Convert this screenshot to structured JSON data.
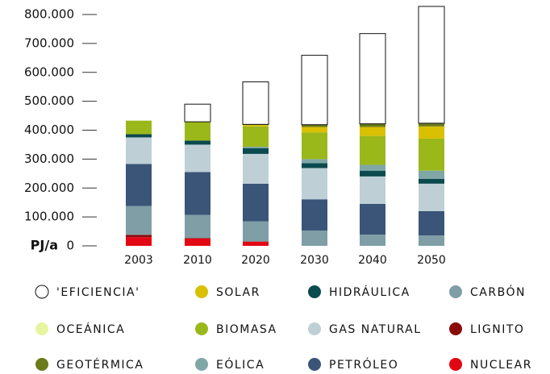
{
  "chart_data": {
    "type": "stacked_bar",
    "y_label": "PJ/a",
    "categories": [
      "2003",
      "2010",
      "2020",
      "2030",
      "2040",
      "2050"
    ],
    "ylim": [
      0,
      830000
    ],
    "yticks": [
      0,
      {
        "value": 100000,
        "label": "100.000"
      },
      {
        "value": 200000,
        "label": "200.000"
      },
      {
        "value": 300000,
        "label": "300.000"
      },
      {
        "value": 400000,
        "label": "400.000"
      },
      {
        "value": 500000,
        "label": "500.000"
      },
      {
        "value": 600000,
        "label": "600.000"
      },
      {
        "value": 700000,
        "label": "700.000"
      },
      {
        "value": 800000,
        "label": "800.000"
      }
    ],
    "series": [
      {
        "name": "NUCLEAR",
        "color": "#e30613",
        "values": [
          30000,
          25000,
          14000,
          0,
          0,
          0
        ]
      },
      {
        "name": "LIGNITO",
        "color": "#8b0a0a",
        "values": [
          8000,
          2000,
          1000,
          0,
          0,
          0
        ]
      },
      {
        "name": "CARBÓN",
        "color": "#7f9ea6",
        "values": [
          100000,
          80000,
          70000,
          53000,
          39000,
          36000
        ]
      },
      {
        "name": "PETRÓLEO",
        "color": "#3a5578",
        "values": [
          145000,
          148000,
          130000,
          108000,
          106000,
          84000
        ]
      },
      {
        "name": "GAS NATURAL",
        "color": "#bfcfd6",
        "values": [
          92000,
          95000,
          103000,
          108000,
          95000,
          95000
        ]
      },
      {
        "name": "HIDRÁULICA",
        "color": "#0b4a4f",
        "values": [
          11000,
          14000,
          20000,
          17000,
          20000,
          17000
        ]
      },
      {
        "name": "EÓLICA",
        "color": "#7fa7a6",
        "values": [
          0,
          0,
          5000,
          14000,
          20000,
          28000
        ]
      },
      {
        "name": "BIOMASA",
        "color": "#9ab81a",
        "values": [
          47000,
          64000,
          70000,
          92000,
          100000,
          111000
        ]
      },
      {
        "name": "SOLAR",
        "color": "#d9c000",
        "values": [
          0,
          1000,
          5000,
          19000,
          31000,
          42000
        ]
      },
      {
        "name": "GEOTÉRMICA",
        "color": "#6b7a1a",
        "values": [
          0,
          0,
          2000,
          8000,
          11000,
          11000
        ]
      },
      {
        "name": "OCEÁNICA",
        "color": "#e8f5a0",
        "values": [
          0,
          0,
          0,
          0,
          0,
          0
        ]
      },
      {
        "name": "'EFICIENCIA'",
        "color": "#ffffff",
        "values": [
          0,
          61000,
          147000,
          240000,
          312000,
          404000
        ]
      }
    ]
  }
}
